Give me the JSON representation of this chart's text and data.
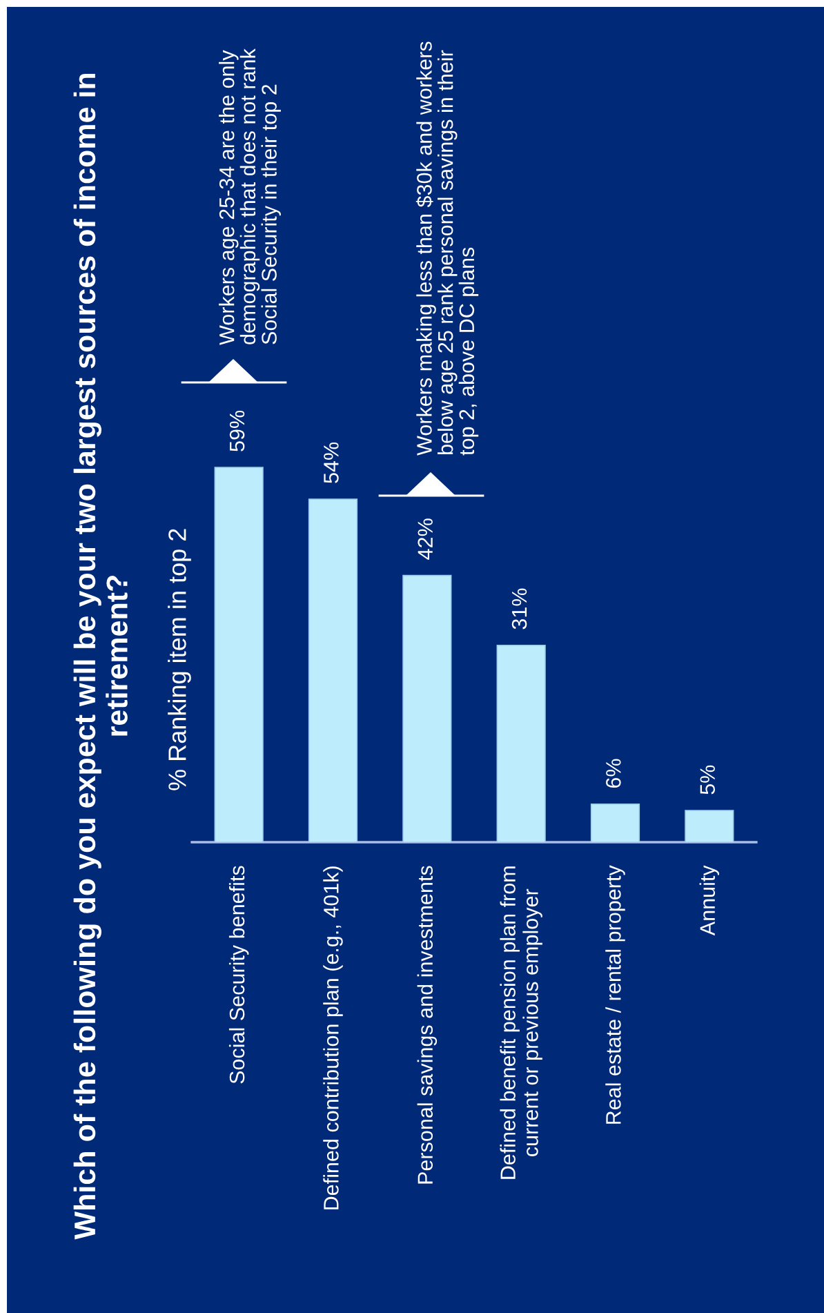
{
  "chart_data": {
    "type": "bar",
    "title": "Which of the following do you expect will be your two largest sources of income in retirement?",
    "subtitle": "% Ranking item in top 2",
    "categories": [
      "Social Security benefits",
      "Defined contribution plan (e.g., 401k)",
      "Personal savings and investments",
      "Defined benefit pension plan from current or previous employer",
      "Real estate / rental property",
      "Annuity"
    ],
    "values": [
      59,
      54,
      42,
      31,
      6,
      5
    ],
    "value_labels": [
      "59%",
      "54%",
      "42%",
      "31%",
      "6%",
      "5%"
    ],
    "color": "#bdecfd",
    "annotations": [
      "Workers age 25-34 are the only demographic that does not rank Social Security in their top 2",
      "Workers making less than $30k and workers below age 25 rank personal savings in their top 2, above DC plans"
    ]
  }
}
